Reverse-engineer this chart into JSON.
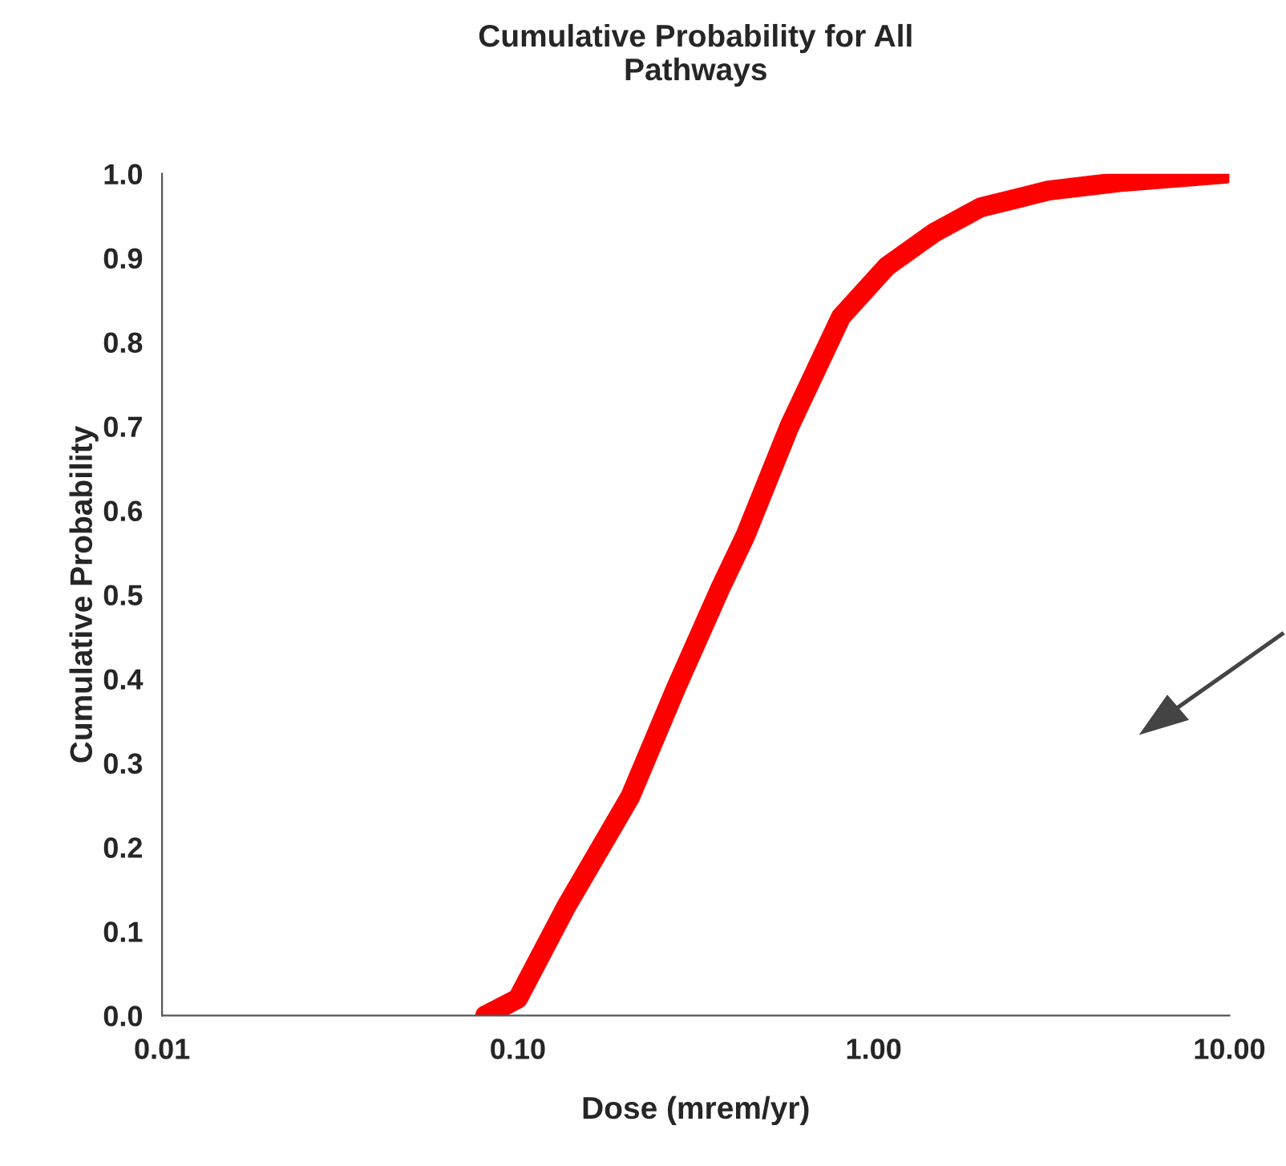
{
  "chart_data": {
    "type": "line",
    "title": "Cumulative Probability for All\nPathways",
    "xlabel": "Dose (mrem/yr)",
    "ylabel": "Cumulative Probability",
    "log": "x",
    "grid": false,
    "legend": false,
    "marker": "none",
    "line_style": "solid",
    "series": [
      {
        "color": "#ff0000",
        "x": [
          0.081,
          0.1,
          0.137,
          0.207,
          0.279,
          0.373,
          0.436,
          0.58,
          0.81,
          1.09,
          1.48,
          2.0,
          3.1,
          4.9,
          9.7
        ],
        "values": [
          0.0,
          0.02,
          0.13,
          0.26,
          0.39,
          0.51,
          0.57,
          0.7,
          0.83,
          0.89,
          0.93,
          0.96,
          0.98,
          0.99,
          1.0
        ]
      }
    ],
    "xlim": [
      0.01,
      10
    ],
    "xticks": [
      {
        "value": 0.01,
        "label": "0.01"
      },
      {
        "value": 0.1,
        "label": "0.10"
      },
      {
        "value": 1,
        "label": "1.00"
      },
      {
        "value": 10,
        "label": "10.00"
      }
    ],
    "ylim": [
      0,
      1
    ],
    "yticks": [
      {
        "value": 0,
        "label": "0.0"
      },
      {
        "value": 0.1,
        "label": "0.1"
      },
      {
        "value": 0.2,
        "label": "0.2"
      },
      {
        "value": 0.3,
        "label": "0.3"
      },
      {
        "value": 0.4,
        "label": "0.4"
      },
      {
        "value": 0.5,
        "label": "0.5"
      },
      {
        "value": 0.6,
        "label": "0.6"
      },
      {
        "value": 0.7,
        "label": "0.7"
      },
      {
        "value": 0.8,
        "label": "0.8"
      },
      {
        "value": 0.9,
        "label": "0.9"
      },
      {
        "value": 1.0,
        "label": "1.0"
      }
    ]
  }
}
